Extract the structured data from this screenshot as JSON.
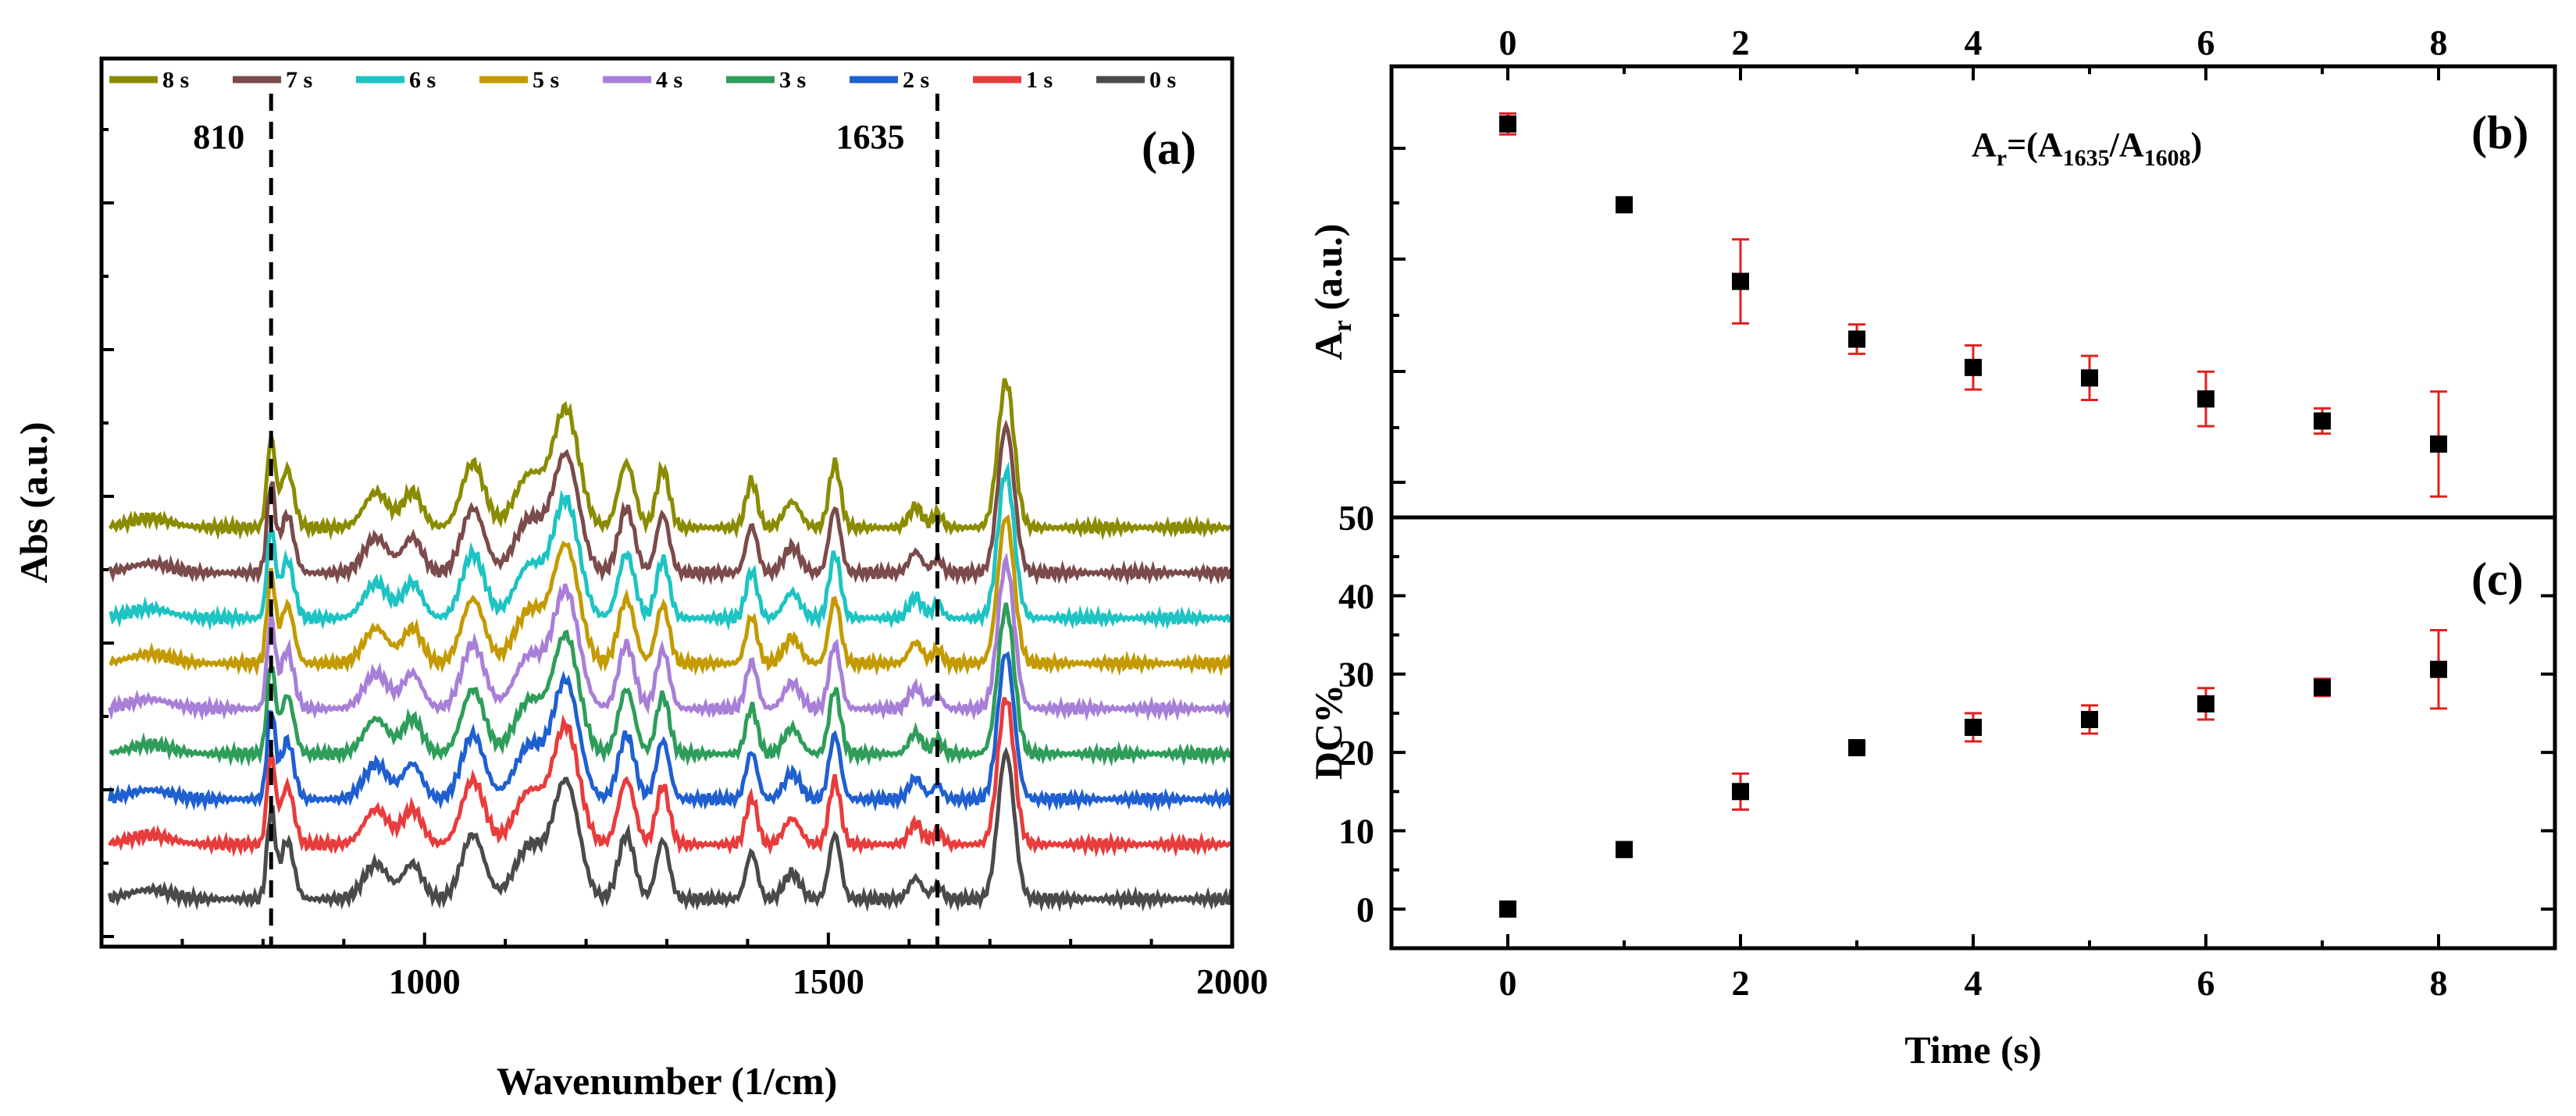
{
  "chart_data": [
    {
      "id": "a",
      "type": "line",
      "panel_label": "(a)",
      "xlabel": "Wavenumber (1/cm)",
      "ylabel": "Abs (a.u.)",
      "xlim": [
        600,
        2000
      ],
      "xticks": [
        1000,
        1500,
        2000
      ],
      "annotations": [
        {
          "text": "810",
          "x": 810
        },
        {
          "text": "1635",
          "x": 1635
        }
      ],
      "dashed_lines_x": [
        810,
        1635
      ],
      "legend_position": "top",
      "series": [
        {
          "name": "8 s",
          "color": "#8b8b00",
          "offset": 8
        },
        {
          "name": "7 s",
          "color": "#7b4a4a",
          "offset": 7
        },
        {
          "name": "6 s",
          "color": "#1ec3c3",
          "offset": 6
        },
        {
          "name": "5 s",
          "color": "#c39a00",
          "offset": 5
        },
        {
          "name": "4 s",
          "color": "#a87fd8",
          "offset": 4
        },
        {
          "name": "3 s",
          "color": "#2e9d5a",
          "offset": 3
        },
        {
          "name": "2 s",
          "color": "#1f5fd0",
          "offset": 2
        },
        {
          "name": "1 s",
          "color": "#e83c3c",
          "offset": 1
        },
        {
          "name": "0 s",
          "color": "#4a4a4a",
          "offset": 0
        }
      ],
      "peaks": [
        {
          "x": 810,
          "h": 0.75,
          "w": 5
        },
        {
          "x": 830,
          "h": 0.5,
          "w": 8
        },
        {
          "x": 940,
          "h": 0.3,
          "w": 15
        },
        {
          "x": 985,
          "h": 0.3,
          "w": 12
        },
        {
          "x": 1060,
          "h": 0.55,
          "w": 14
        },
        {
          "x": 1130,
          "h": 0.45,
          "w": 18
        },
        {
          "x": 1175,
          "h": 1.0,
          "w": 16
        },
        {
          "x": 1250,
          "h": 0.55,
          "w": 10
        },
        {
          "x": 1295,
          "h": 0.5,
          "w": 8
        },
        {
          "x": 1405,
          "h": 0.4,
          "w": 7
        },
        {
          "x": 1455,
          "h": 0.22,
          "w": 10
        },
        {
          "x": 1508,
          "h": 0.55,
          "w": 7
        },
        {
          "x": 1608,
          "h": 0.18,
          "w": 8
        },
        {
          "x": 1635,
          "h": 0.12,
          "w": 6
        },
        {
          "x": 1720,
          "h": 1.25,
          "w": 10
        }
      ]
    },
    {
      "id": "b",
      "type": "scatter",
      "panel_label": "(b)",
      "ylabel_main": "A",
      "ylabel_sub": "r",
      "ylabel_tail": " (a.u.)",
      "formula_main": "A",
      "formula_r": "r",
      "formula_mid": "=(A",
      "formula_s1": "1635",
      "formula_slash": "/A",
      "formula_s2": "1608",
      "formula_close": ")",
      "xlim": [
        -1,
        9
      ],
      "xticks": [
        0,
        2,
        4,
        6,
        8
      ],
      "top_axis_labels": true,
      "ylim": [
        0,
        1
      ],
      "x": [
        0,
        1,
        2,
        3,
        4,
        5,
        6,
        7,
        8
      ],
      "y": [
        1.0,
        0.923,
        0.85,
        0.795,
        0.768,
        0.758,
        0.738,
        0.717,
        0.695
      ],
      "err": [
        0.01,
        0.0,
        0.04,
        0.014,
        0.021,
        0.021,
        0.026,
        0.012,
        0.05
      ],
      "yrange": [
        0.64,
        1.04
      ],
      "marker_color": "#000000",
      "errorbar_color": "#e02020"
    },
    {
      "id": "c",
      "type": "scatter",
      "panel_label": "(c)",
      "xlabel": "Time (s)",
      "ylabel": "DC%",
      "xlim": [
        -1,
        9
      ],
      "ylim": [
        -5,
        50
      ],
      "xticks": [
        0,
        2,
        4,
        6,
        8
      ],
      "yticks": [
        0,
        10,
        20,
        30,
        40,
        50
      ],
      "x": [
        0,
        1,
        2,
        3,
        4,
        5,
        6,
        7,
        8
      ],
      "y": [
        0,
        7.6,
        15.0,
        20.6,
        23.2,
        24.2,
        26.2,
        28.3,
        30.6
      ],
      "err": [
        0.8,
        0.0,
        2.3,
        0.9,
        1.8,
        1.8,
        2.0,
        1.1,
        5.0
      ],
      "marker_color": "#000000",
      "errorbar_color": "#e02020"
    }
  ]
}
